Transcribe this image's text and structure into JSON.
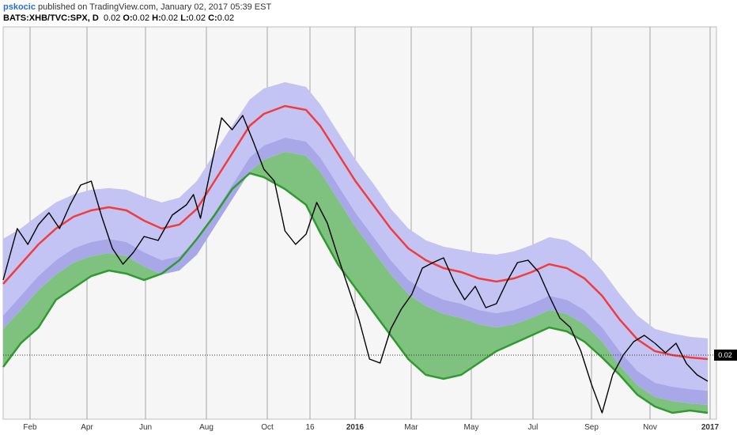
{
  "header": {
    "user": "pskocic",
    "published": " published on TradingView.com, January 02, 2017 05:39 EST",
    "symbol": "BATS:XHB/TVC:SPX, D",
    "open_label": "O:",
    "open": "0.02",
    "high_label": "H:",
    "high": "0.02",
    "low_label": "L:",
    "low": "0.02",
    "close_label": "C:",
    "close": "0.02",
    "last": "0.02"
  },
  "chart_data": {
    "type": "line",
    "x_ticks": [
      "Feb",
      "Apr",
      "Jun",
      "Aug",
      "Oct",
      "16",
      "2016",
      "Mar",
      "May",
      "Jul",
      "Sep",
      "Nov",
      "2017"
    ],
    "bold_ticks": [
      "2016",
      "2017"
    ],
    "price_label": "0.02",
    "grid": true,
    "colors": {
      "price": "#000000",
      "upper": "#f03c3c",
      "upper_fill": "#f28b8b",
      "lower": "#2e9b2e",
      "lower_fill": "#7fc27f",
      "middle_fill": "#c4c4f4",
      "axis_label_bg": "#000000"
    },
    "series": [
      {
        "values": [
          [
            0.0,
            325
          ],
          [
            0.025,
            300
          ],
          [
            0.05,
            275
          ],
          [
            0.075,
            255
          ],
          [
            0.1,
            240
          ],
          [
            0.125,
            232
          ],
          [
            0.15,
            228
          ],
          [
            0.175,
            232
          ],
          [
            0.2,
            245
          ],
          [
            0.225,
            255
          ],
          [
            0.25,
            250
          ],
          [
            0.275,
            230
          ],
          [
            0.3,
            195
          ],
          [
            0.325,
            160
          ],
          [
            0.35,
            125
          ],
          [
            0.37,
            110
          ],
          [
            0.4,
            100
          ],
          [
            0.43,
            105
          ],
          [
            0.45,
            125
          ],
          [
            0.475,
            160
          ],
          [
            0.5,
            195
          ],
          [
            0.525,
            225
          ],
          [
            0.55,
            255
          ],
          [
            0.575,
            280
          ],
          [
            0.6,
            295
          ],
          [
            0.625,
            305
          ],
          [
            0.65,
            310
          ],
          [
            0.675,
            318
          ],
          [
            0.7,
            322
          ],
          [
            0.725,
            318
          ],
          [
            0.75,
            310
          ],
          [
            0.775,
            300
          ],
          [
            0.8,
            305
          ],
          [
            0.825,
            318
          ],
          [
            0.85,
            340
          ],
          [
            0.875,
            370
          ],
          [
            0.9,
            395
          ],
          [
            0.925,
            410
          ],
          [
            0.95,
            415
          ],
          [
            0.975,
            418
          ],
          [
            1.0,
            420
          ]
        ]
      },
      {
        "values": [
          [
            0.0,
            268
          ],
          [
            0.025,
            255
          ],
          [
            0.05,
            238
          ],
          [
            0.075,
            222
          ],
          [
            0.1,
            212
          ],
          [
            0.125,
            206
          ],
          [
            0.15,
            204
          ],
          [
            0.175,
            206
          ],
          [
            0.2,
            215
          ],
          [
            0.225,
            222
          ],
          [
            0.25,
            216
          ],
          [
            0.275,
            195
          ],
          [
            0.3,
            160
          ],
          [
            0.325,
            125
          ],
          [
            0.35,
            92
          ],
          [
            0.37,
            78
          ],
          [
            0.4,
            70
          ],
          [
            0.43,
            76
          ],
          [
            0.45,
            98
          ],
          [
            0.475,
            133
          ],
          [
            0.5,
            168
          ],
          [
            0.525,
            198
          ],
          [
            0.55,
            230
          ],
          [
            0.575,
            255
          ],
          [
            0.6,
            270
          ],
          [
            0.625,
            278
          ],
          [
            0.65,
            282
          ],
          [
            0.675,
            286
          ],
          [
            0.7,
            288
          ],
          [
            0.725,
            284
          ],
          [
            0.75,
            276
          ],
          [
            0.775,
            266
          ],
          [
            0.8,
            270
          ],
          [
            0.825,
            284
          ],
          [
            0.85,
            308
          ],
          [
            0.875,
            338
          ],
          [
            0.9,
            365
          ],
          [
            0.925,
            382
          ],
          [
            0.95,
            388
          ],
          [
            0.975,
            392
          ],
          [
            1.0,
            394
          ]
        ]
      },
      {
        "values": [
          [
            0.0,
            365
          ],
          [
            0.025,
            340
          ],
          [
            0.05,
            315
          ],
          [
            0.075,
            295
          ],
          [
            0.1,
            280
          ],
          [
            0.125,
            272
          ],
          [
            0.15,
            268
          ],
          [
            0.175,
            272
          ],
          [
            0.2,
            285
          ],
          [
            0.225,
            295
          ],
          [
            0.25,
            290
          ],
          [
            0.275,
            270
          ],
          [
            0.3,
            235
          ],
          [
            0.325,
            200
          ],
          [
            0.35,
            165
          ],
          [
            0.37,
            150
          ],
          [
            0.4,
            140
          ],
          [
            0.43,
            145
          ],
          [
            0.45,
            165
          ],
          [
            0.475,
            200
          ],
          [
            0.5,
            235
          ],
          [
            0.525,
            265
          ],
          [
            0.55,
            295
          ],
          [
            0.575,
            320
          ],
          [
            0.6,
            335
          ],
          [
            0.625,
            345
          ],
          [
            0.65,
            350
          ],
          [
            0.675,
            358
          ],
          [
            0.7,
            362
          ],
          [
            0.725,
            358
          ],
          [
            0.75,
            350
          ],
          [
            0.775,
            340
          ],
          [
            0.8,
            345
          ],
          [
            0.825,
            358
          ],
          [
            0.85,
            380
          ],
          [
            0.875,
            410
          ],
          [
            0.9,
            435
          ],
          [
            0.925,
            450
          ],
          [
            0.95,
            455
          ],
          [
            0.975,
            458
          ],
          [
            1.0,
            460
          ]
        ]
      },
      {
        "values": [
          [
            0.0,
            382
          ],
          [
            0.025,
            358
          ],
          [
            0.05,
            333
          ],
          [
            0.075,
            313
          ],
          [
            0.1,
            298
          ],
          [
            0.125,
            290
          ],
          [
            0.15,
            286
          ],
          [
            0.175,
            290
          ],
          [
            0.2,
            303
          ],
          [
            0.225,
            313
          ],
          [
            0.25,
            308
          ],
          [
            0.275,
            288
          ],
          [
            0.3,
            253
          ],
          [
            0.325,
            218
          ],
          [
            0.35,
            183
          ],
          [
            0.37,
            168
          ],
          [
            0.4,
            158
          ],
          [
            0.43,
            163
          ],
          [
            0.45,
            183
          ],
          [
            0.475,
            218
          ],
          [
            0.5,
            253
          ],
          [
            0.525,
            283
          ],
          [
            0.55,
            313
          ],
          [
            0.575,
            338
          ],
          [
            0.6,
            353
          ],
          [
            0.625,
            363
          ],
          [
            0.65,
            368
          ],
          [
            0.675,
            376
          ],
          [
            0.7,
            380
          ],
          [
            0.725,
            376
          ],
          [
            0.75,
            368
          ],
          [
            0.775,
            358
          ],
          [
            0.8,
            363
          ],
          [
            0.825,
            376
          ],
          [
            0.85,
            398
          ],
          [
            0.875,
            428
          ],
          [
            0.9,
            453
          ],
          [
            0.925,
            468
          ],
          [
            0.95,
            473
          ],
          [
            0.975,
            476
          ],
          [
            1.0,
            478
          ]
        ]
      },
      {
        "values": [
          [
            0.0,
            430
          ],
          [
            0.025,
            400
          ],
          [
            0.05,
            380
          ],
          [
            0.075,
            345
          ],
          [
            0.1,
            330
          ],
          [
            0.125,
            315
          ],
          [
            0.15,
            308
          ],
          [
            0.175,
            312
          ],
          [
            0.2,
            320
          ],
          [
            0.225,
            312
          ],
          [
            0.25,
            295
          ],
          [
            0.275,
            268
          ],
          [
            0.3,
            238
          ],
          [
            0.325,
            205
          ],
          [
            0.35,
            185
          ],
          [
            0.37,
            190
          ],
          [
            0.4,
            205
          ],
          [
            0.43,
            225
          ],
          [
            0.45,
            260
          ],
          [
            0.475,
            300
          ],
          [
            0.5,
            330
          ],
          [
            0.525,
            360
          ],
          [
            0.55,
            390
          ],
          [
            0.575,
            420
          ],
          [
            0.6,
            440
          ],
          [
            0.625,
            445
          ],
          [
            0.65,
            440
          ],
          [
            0.675,
            425
          ],
          [
            0.7,
            410
          ],
          [
            0.725,
            400
          ],
          [
            0.75,
            390
          ],
          [
            0.775,
            380
          ],
          [
            0.8,
            385
          ],
          [
            0.825,
            398
          ],
          [
            0.85,
            418
          ],
          [
            0.875,
            440
          ],
          [
            0.9,
            465
          ],
          [
            0.925,
            480
          ],
          [
            0.95,
            488
          ],
          [
            0.975,
            485
          ],
          [
            1.0,
            488
          ]
        ]
      },
      {
        "values": [
          [
            0.0,
            320
          ],
          [
            0.02,
            255
          ],
          [
            0.035,
            275
          ],
          [
            0.05,
            250
          ],
          [
            0.065,
            235
          ],
          [
            0.08,
            255
          ],
          [
            0.095,
            225
          ],
          [
            0.11,
            200
          ],
          [
            0.125,
            195
          ],
          [
            0.14,
            240
          ],
          [
            0.155,
            280
          ],
          [
            0.17,
            300
          ],
          [
            0.185,
            285
          ],
          [
            0.2,
            265
          ],
          [
            0.22,
            270
          ],
          [
            0.24,
            238
          ],
          [
            0.26,
            225
          ],
          [
            0.27,
            212
          ],
          [
            0.28,
            242
          ],
          [
            0.295,
            178
          ],
          [
            0.31,
            115
          ],
          [
            0.325,
            130
          ],
          [
            0.34,
            112
          ],
          [
            0.355,
            145
          ],
          [
            0.37,
            180
          ],
          [
            0.385,
            195
          ],
          [
            0.4,
            258
          ],
          [
            0.415,
            275
          ],
          [
            0.43,
            262
          ],
          [
            0.445,
            222
          ],
          [
            0.46,
            248
          ],
          [
            0.475,
            290
          ],
          [
            0.49,
            330
          ],
          [
            0.505,
            370
          ],
          [
            0.52,
            420
          ],
          [
            0.535,
            425
          ],
          [
            0.55,
            382
          ],
          [
            0.565,
            357
          ],
          [
            0.58,
            338
          ],
          [
            0.595,
            305
          ],
          [
            0.61,
            298
          ],
          [
            0.625,
            292
          ],
          [
            0.64,
            322
          ],
          [
            0.655,
            345
          ],
          [
            0.67,
            328
          ],
          [
            0.685,
            355
          ],
          [
            0.7,
            350
          ],
          [
            0.715,
            322
          ],
          [
            0.73,
            298
          ],
          [
            0.745,
            295
          ],
          [
            0.76,
            310
          ],
          [
            0.775,
            340
          ],
          [
            0.79,
            368
          ],
          [
            0.805,
            380
          ],
          [
            0.82,
            410
          ],
          [
            0.835,
            452
          ],
          [
            0.85,
            488
          ],
          [
            0.865,
            440
          ],
          [
            0.88,
            415
          ],
          [
            0.895,
            398
          ],
          [
            0.91,
            390
          ],
          [
            0.925,
            400
          ],
          [
            0.94,
            412
          ],
          [
            0.955,
            400
          ],
          [
            0.97,
            426
          ],
          [
            0.985,
            440
          ],
          [
            1.0,
            448
          ]
        ]
      }
    ]
  }
}
